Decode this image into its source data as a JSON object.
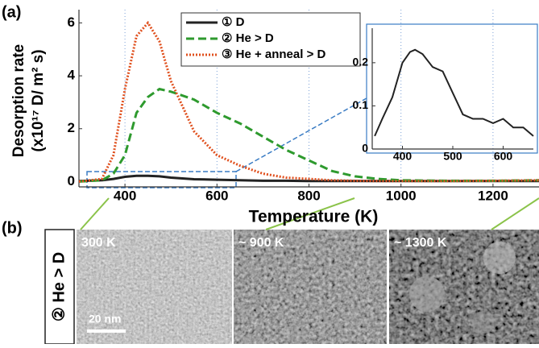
{
  "panel_labels": [
    "(a)",
    "(b)"
  ],
  "chart_data": [
    {
      "type": "line",
      "xlabel": "Temperature (K)",
      "ylabel": "Desorption rate",
      "ylabel_unit": "(x10¹⁷ D/ m² s)",
      "x": [
        300,
        350,
        375,
        400,
        425,
        450,
        475,
        500,
        550,
        600,
        650,
        700,
        750,
        800,
        850,
        900,
        950,
        1000,
        1100,
        1200,
        1300
      ],
      "series": [
        {
          "name": "① D",
          "color": "#222222",
          "style": "solid",
          "values": [
            0.02,
            0.05,
            0.1,
            0.18,
            0.22,
            0.22,
            0.2,
            0.15,
            0.09,
            0.07,
            0.05,
            0.03,
            0.03,
            0.02,
            0.02,
            0.02,
            0.02,
            0.02,
            0.02,
            0.02,
            0.02
          ]
        },
        {
          "name": "② He > D",
          "color": "#2e9a2e",
          "style": "dashed",
          "values": [
            0,
            0.05,
            0.3,
            1.0,
            2.6,
            3.2,
            3.5,
            3.4,
            3.1,
            2.6,
            2.2,
            1.7,
            1.2,
            0.8,
            0.4,
            0.2,
            0.1,
            0.05,
            0.03,
            0.03,
            0.05
          ]
        },
        {
          "name": "③ He + anneal > D",
          "color": "#e0501e",
          "style": "dotted",
          "values": [
            0,
            0.1,
            1.0,
            3.5,
            5.5,
            6.0,
            5.3,
            3.8,
            1.9,
            1.0,
            0.6,
            0.3,
            0.15,
            0.1,
            0.05,
            0.03,
            0.02,
            0.02,
            0.02,
            0.03,
            0.05
          ]
        }
      ],
      "xlim": [
        300,
        1300
      ],
      "ylim": [
        -0.2,
        6.5
      ],
      "xticks": [
        400,
        600,
        800,
        1000,
        1200
      ],
      "yticks": [
        0,
        2,
        4,
        6
      ],
      "grid": "x",
      "legend": "upper-center"
    },
    {
      "type": "line",
      "x": [
        345,
        360,
        380,
        400,
        415,
        425,
        440,
        460,
        480,
        500,
        520,
        540,
        560,
        580,
        600,
        620,
        640,
        660
      ],
      "series": [
        {
          "color": "#222222",
          "style": "solid",
          "values": [
            0.03,
            0.07,
            0.12,
            0.2,
            0.225,
            0.23,
            0.22,
            0.19,
            0.18,
            0.13,
            0.08,
            0.07,
            0.07,
            0.06,
            0.07,
            0.05,
            0.05,
            0.03
          ]
        }
      ],
      "xlim": [
        340,
        660
      ],
      "ylim": [
        0,
        0.28
      ],
      "xticks": [
        400,
        500,
        600
      ],
      "yticks": [
        0,
        0.1,
        0.2
      ]
    }
  ],
  "images": {
    "row_label": "② He > D",
    "items": [
      "300 K",
      "~ 900 K",
      "~ 1300 K"
    ],
    "scale_bar": "20 nm"
  }
}
